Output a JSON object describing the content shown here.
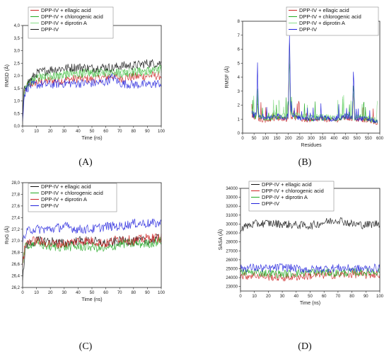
{
  "chart_data": [
    {
      "panel_label": "(A)",
      "type": "line",
      "xlabel": "Time (ns)",
      "ylabel": "RMSD (Å)",
      "xlim": [
        0,
        100
      ],
      "ylim": [
        0,
        4.0
      ],
      "xticks": [
        "0",
        "10",
        "20",
        "30",
        "40",
        "50",
        "60",
        "70",
        "80",
        "90",
        "100"
      ],
      "yticks": [
        "0,0",
        "0,5",
        "1,0",
        "1,5",
        "2,0",
        "2,5",
        "3,0",
        "3,5",
        "4,0"
      ],
      "legend_position": "top-left",
      "series": [
        {
          "name": "DPP-IV + ellagic acid",
          "color": "#cc2222",
          "x": [
            0,
            1,
            3,
            5,
            10,
            20,
            30,
            40,
            50,
            60,
            65,
            70,
            80,
            90,
            100
          ],
          "y": [
            0.3,
            1.2,
            1.55,
            1.65,
            1.75,
            1.8,
            1.82,
            1.9,
            1.85,
            1.95,
            2.0,
            1.9,
            1.95,
            2.0,
            2.0
          ]
        },
        {
          "name": "DPP-IV + chlorogenic acid",
          "color": "#22aa22",
          "x": [
            0,
            1,
            3,
            5,
            10,
            20,
            30,
            40,
            50,
            60,
            65,
            70,
            80,
            90,
            100
          ],
          "y": [
            0.3,
            1.3,
            1.6,
            1.7,
            1.9,
            2.0,
            2.05,
            2.1,
            2.1,
            2.15,
            2.2,
            2.1,
            2.15,
            2.2,
            2.25
          ]
        },
        {
          "name": "DPP-IV + diprotin A",
          "color": "#88dd88",
          "x": [
            0,
            1,
            3,
            5,
            10,
            20,
            30,
            40,
            50,
            60,
            65,
            70,
            80,
            90,
            100
          ],
          "y": [
            0.3,
            1.3,
            1.6,
            1.75,
            1.95,
            2.0,
            2.05,
            2.1,
            2.1,
            2.1,
            2.1,
            2.1,
            2.15,
            2.15,
            2.2
          ]
        },
        {
          "name": "DPP-IV",
          "color": "#111111",
          "x": [
            0,
            1,
            3,
            5,
            10,
            20,
            30,
            40,
            50,
            60,
            65,
            70,
            80,
            90,
            100
          ],
          "y": [
            0.3,
            1.4,
            1.7,
            1.8,
            2.1,
            2.25,
            2.3,
            2.35,
            2.3,
            2.35,
            2.3,
            2.4,
            2.4,
            2.5,
            2.5
          ]
        },
        {
          "name": "",
          "color": "#2222dd",
          "x": [
            0,
            1,
            3,
            5,
            10,
            20,
            30,
            40,
            50,
            60,
            65,
            70,
            80,
            90,
            100
          ],
          "y": [
            0.3,
            1.2,
            1.5,
            1.6,
            1.65,
            1.65,
            1.7,
            1.7,
            1.7,
            1.75,
            1.95,
            1.7,
            1.65,
            1.65,
            1.7
          ]
        }
      ]
    },
    {
      "panel_label": "(B)",
      "type": "line",
      "xlabel": "Residues",
      "ylabel": "RMSF (Å)",
      "xlim": [
        0,
        600
      ],
      "ylim": [
        0,
        8
      ],
      "xticks": [
        "0",
        "50",
        "100",
        "150",
        "200",
        "250",
        "300",
        "350",
        "400",
        "450",
        "500",
        "550",
        "600"
      ],
      "yticks": [
        "0",
        "1",
        "2",
        "3",
        "4",
        "5",
        "6",
        "7",
        "8"
      ],
      "legend_position": "top-right",
      "series": [
        {
          "name": "DPP-IV + ellagic acid",
          "color": "#cc2222",
          "x": [
            40,
            60,
            65,
            70,
            100,
            150,
            200,
            205,
            210,
            250,
            300,
            350,
            400,
            450,
            480,
            485,
            490,
            550,
            590
          ],
          "y": [
            1.2,
            1.1,
            2.5,
            1.0,
            0.9,
            1.1,
            1.0,
            6.5,
            1.2,
            1.0,
            0.9,
            1.0,
            0.9,
            1.1,
            1.0,
            3.5,
            1.0,
            0.9,
            0.7
          ]
        },
        {
          "name": "DPP-IV + chlorogenic acid",
          "color": "#22aa22",
          "x": [
            40,
            60,
            65,
            70,
            100,
            150,
            200,
            205,
            210,
            250,
            300,
            350,
            400,
            450,
            480,
            485,
            490,
            550,
            590
          ],
          "y": [
            1.3,
            1.2,
            2.8,
            1.1,
            1.0,
            1.2,
            1.1,
            6.0,
            1.3,
            1.1,
            1.0,
            1.1,
            1.0,
            1.2,
            1.1,
            3.8,
            1.1,
            1.0,
            0.8
          ]
        },
        {
          "name": "DPP-IV + diprotin A",
          "color": "#88dd88",
          "x": [
            40,
            60,
            65,
            70,
            100,
            150,
            200,
            205,
            210,
            250,
            300,
            350,
            400,
            450,
            480,
            485,
            490,
            550,
            590
          ],
          "y": [
            1.5,
            1.3,
            3.0,
            1.2,
            1.1,
            1.3,
            1.2,
            5.5,
            1.4,
            1.2,
            1.1,
            1.2,
            1.1,
            1.3,
            1.2,
            3.2,
            1.2,
            1.1,
            0.9
          ]
        },
        {
          "name": "DPP-IV",
          "color": "#2222dd",
          "x": [
            40,
            60,
            65,
            70,
            100,
            150,
            200,
            205,
            210,
            250,
            300,
            350,
            400,
            450,
            480,
            485,
            490,
            550,
            590
          ],
          "y": [
            1.4,
            1.2,
            4.6,
            1.1,
            1.0,
            1.2,
            1.1,
            6.8,
            1.3,
            1.1,
            1.0,
            1.1,
            1.0,
            1.2,
            1.1,
            4.5,
            1.1,
            1.0,
            0.8
          ]
        }
      ]
    },
    {
      "panel_label": "(C)",
      "type": "line",
      "xlabel": "Time (ns)",
      "ylabel": "RoG (Å)",
      "xlim": [
        0,
        100
      ],
      "ylim": [
        26.2,
        28.0
      ],
      "xticks": [
        "0",
        "10",
        "20",
        "30",
        "40",
        "50",
        "60",
        "70",
        "80",
        "90",
        "100"
      ],
      "yticks": [
        "26,2",
        "26,4",
        "26,6",
        "26,8",
        "27,0",
        "27,2",
        "27,4",
        "27,6",
        "27,8",
        "28,0"
      ],
      "legend_position": "top-left",
      "series": [
        {
          "name": "DPP-IV + ellagic acid",
          "color": "#111111",
          "x": [
            0,
            2,
            5,
            10,
            20,
            30,
            40,
            50,
            60,
            70,
            80,
            90,
            100
          ],
          "y": [
            26.3,
            26.9,
            26.95,
            27.0,
            27.0,
            26.95,
            27.0,
            27.0,
            26.95,
            27.0,
            27.0,
            27.0,
            27.05
          ]
        },
        {
          "name": "DPP-IV + chlorogenic acid",
          "color": "#22aa22",
          "x": [
            0,
            2,
            5,
            10,
            20,
            30,
            40,
            50,
            60,
            70,
            80,
            90,
            100
          ],
          "y": [
            26.6,
            26.9,
            26.95,
            26.95,
            26.9,
            26.9,
            26.9,
            26.9,
            26.85,
            26.95,
            26.95,
            26.95,
            27.0
          ]
        },
        {
          "name": "DPP-IV + diprotin A",
          "color": "#cc2222",
          "x": [
            0,
            2,
            5,
            10,
            20,
            30,
            40,
            50,
            60,
            70,
            80,
            90,
            100
          ],
          "y": [
            26.6,
            26.95,
            27.0,
            27.0,
            26.95,
            26.95,
            27.0,
            27.0,
            26.95,
            27.05,
            27.0,
            27.05,
            27.05
          ]
        },
        {
          "name": "DPP-IV",
          "color": "#2222dd",
          "x": [
            0,
            2,
            5,
            10,
            20,
            30,
            40,
            50,
            60,
            70,
            80,
            90,
            100
          ],
          "y": [
            27.0,
            27.1,
            27.2,
            27.2,
            27.2,
            27.25,
            27.2,
            27.2,
            27.25,
            27.25,
            27.3,
            27.3,
            27.3
          ]
        }
      ]
    },
    {
      "panel_label": "(D)",
      "type": "line",
      "xlabel": "Time (ns)",
      "ylabel": "SASA (Å)",
      "xlim": [
        0,
        100
      ],
      "ylim": [
        22500,
        34000
      ],
      "xticks": [
        "0",
        "10",
        "20",
        "30",
        "40",
        "50",
        "60",
        "70",
        "80",
        "90",
        "100"
      ],
      "yticks": [
        "23000",
        "24000",
        "25000",
        "26000",
        "27000",
        "28000",
        "29000",
        "30000",
        "31000",
        "32000",
        "33000",
        "34000"
      ],
      "legend_position": "top-left",
      "series": [
        {
          "name": "DPP-IV + ellagic acid",
          "color": "#111111",
          "x": [
            0,
            5,
            10,
            20,
            30,
            40,
            50,
            60,
            70,
            80,
            90,
            100
          ],
          "y": [
            29500,
            29800,
            30000,
            30100,
            30000,
            29900,
            29800,
            30200,
            30500,
            30000,
            29900,
            30100
          ]
        },
        {
          "name": "DPP-IV + chlorogenic acid",
          "color": "#cc2222",
          "x": [
            0,
            5,
            10,
            20,
            30,
            40,
            50,
            60,
            70,
            80,
            90,
            100
          ],
          "y": [
            24200,
            24200,
            24300,
            24100,
            24000,
            24100,
            24200,
            24300,
            24300,
            24400,
            24300,
            24400
          ]
        },
        {
          "name": "DPP-IV + diprotin A",
          "color": "#22aa22",
          "x": [
            0,
            5,
            10,
            20,
            30,
            40,
            50,
            60,
            70,
            80,
            90,
            100
          ],
          "y": [
            24500,
            24600,
            24600,
            24500,
            24400,
            24500,
            24600,
            24600,
            24500,
            24600,
            24600,
            24700
          ]
        },
        {
          "name": "DPP-IV",
          "color": "#2222dd",
          "x": [
            0,
            5,
            10,
            20,
            30,
            40,
            50,
            60,
            70,
            80,
            90,
            100
          ],
          "y": [
            25000,
            25100,
            25100,
            25000,
            25200,
            25000,
            24900,
            25000,
            25100,
            25000,
            25000,
            25100
          ]
        }
      ]
    }
  ]
}
